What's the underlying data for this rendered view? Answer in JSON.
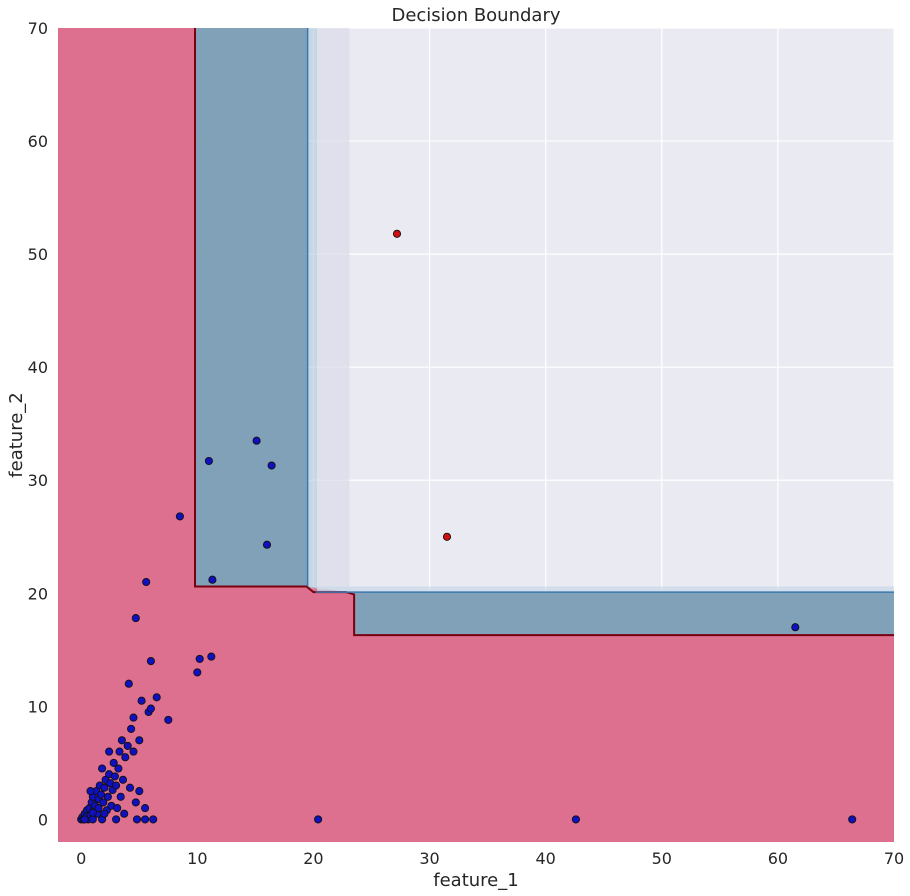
{
  "chart_data": {
    "type": "scatter",
    "title": "Decision Boundary",
    "xlabel": "feature_1",
    "ylabel": "feature_2",
    "xlim": [
      -2,
      70
    ],
    "ylim": [
      -2,
      70
    ],
    "xticks": [
      0,
      10,
      20,
      30,
      40,
      50,
      60,
      70
    ],
    "yticks": [
      0,
      10,
      20,
      30,
      40,
      50,
      60,
      70
    ],
    "grid": true,
    "colors": {
      "background": "#eaeaf2",
      "grid": "#ffffff",
      "class_0_region": "#dd708f",
      "class_1_region": "#7a9db3",
      "boundary_line": "#7a0010",
      "class_0_points": "#1010c0",
      "class_1_points": "#d01010"
    },
    "regions": [
      {
        "class": 0,
        "polygon": [
          [
            -2,
            -2
          ],
          [
            70,
            -2
          ],
          [
            70,
            16.3
          ],
          [
            23.5,
            16.3
          ],
          [
            23.5,
            20
          ],
          [
            19.5,
            20.6
          ],
          [
            9.8,
            20.6
          ],
          [
            9.8,
            70
          ],
          [
            -2,
            70
          ]
        ]
      },
      {
        "class": 1,
        "polygon": [
          [
            9.8,
            70
          ],
          [
            9.8,
            20.6
          ],
          [
            19.5,
            20.6
          ],
          [
            19.5,
            70
          ]
        ]
      },
      {
        "class": 1,
        "polygon": [
          [
            23.5,
            20.1
          ],
          [
            70,
            20.1
          ],
          [
            70,
            16.3
          ],
          [
            23.5,
            16.3
          ]
        ]
      }
    ],
    "boundary": [
      [
        9.8,
        70
      ],
      [
        9.8,
        20.6
      ],
      [
        19.4,
        20.6
      ],
      [
        20.0,
        20.1
      ],
      [
        22.8,
        20.1
      ],
      [
        23.5,
        19.9
      ],
      [
        23.5,
        16.3
      ],
      [
        70,
        16.3
      ]
    ],
    "series": [
      {
        "class": 0,
        "points": [
          [
            0.0,
            0.0
          ],
          [
            0.1,
            0.2
          ],
          [
            0.2,
            0.0
          ],
          [
            0.3,
            0.5
          ],
          [
            0.4,
            0.1
          ],
          [
            0.5,
            0.8
          ],
          [
            0.5,
            0.3
          ],
          [
            0.6,
            0.0
          ],
          [
            0.7,
            1.0
          ],
          [
            0.8,
            0.4
          ],
          [
            0.9,
            1.5
          ],
          [
            1.0,
            0.0
          ],
          [
            1.0,
            2.0
          ],
          [
            1.1,
            0.9
          ],
          [
            1.2,
            1.2
          ],
          [
            1.3,
            2.5
          ],
          [
            1.4,
            0.5
          ],
          [
            1.5,
            1.8
          ],
          [
            1.6,
            3.0
          ],
          [
            1.7,
            2.2
          ],
          [
            1.8,
            0.0
          ],
          [
            1.9,
            1.5
          ],
          [
            2.0,
            2.8
          ],
          [
            2.1,
            3.5
          ],
          [
            2.2,
            0.8
          ],
          [
            2.3,
            2.0
          ],
          [
            2.4,
            4.0
          ],
          [
            2.5,
            3.2
          ],
          [
            2.6,
            1.2
          ],
          [
            2.7,
            2.6
          ],
          [
            2.8,
            5.0
          ],
          [
            2.9,
            3.8
          ],
          [
            3.0,
            0.0
          ],
          [
            3.1,
            1.0
          ],
          [
            3.2,
            4.5
          ],
          [
            3.3,
            6.0
          ],
          [
            3.4,
            2.0
          ],
          [
            3.5,
            7.0
          ],
          [
            3.6,
            3.5
          ],
          [
            3.7,
            0.5
          ],
          [
            3.8,
            5.5
          ],
          [
            4.0,
            6.5
          ],
          [
            4.2,
            2.8
          ],
          [
            4.3,
            8.0
          ],
          [
            4.5,
            9.0
          ],
          [
            4.5,
            6.0
          ],
          [
            4.7,
            1.5
          ],
          [
            4.8,
            0.0
          ],
          [
            5.0,
            2.5
          ],
          [
            5.0,
            7.0
          ],
          [
            5.2,
            10.5
          ],
          [
            5.5,
            0.0
          ],
          [
            5.5,
            1.0
          ],
          [
            5.6,
            21.0
          ],
          [
            5.8,
            9.5
          ],
          [
            6.0,
            14.0
          ],
          [
            6.0,
            9.8
          ],
          [
            6.2,
            0.0
          ],
          [
            6.5,
            10.8
          ],
          [
            4.7,
            17.8
          ],
          [
            4.1,
            12.0
          ],
          [
            2.4,
            6.0
          ],
          [
            1.8,
            4.5
          ],
          [
            0.8,
            2.5
          ],
          [
            1.5,
            1.0
          ],
          [
            3.0,
            3.0
          ],
          [
            2.0,
            0.5
          ],
          [
            1.0,
            0.6
          ],
          [
            0.3,
            0.0
          ],
          [
            7.5,
            8.8
          ],
          [
            8.5,
            26.8
          ],
          [
            10.0,
            13.0
          ],
          [
            10.2,
            14.2
          ],
          [
            11.2,
            14.4
          ],
          [
            11.0,
            31.7
          ],
          [
            11.3,
            21.2
          ],
          [
            15.1,
            33.5
          ],
          [
            16.0,
            24.3
          ],
          [
            16.4,
            31.3
          ],
          [
            20.4,
            0.0
          ],
          [
            42.6,
            0.0
          ],
          [
            61.5,
            17.0
          ],
          [
            66.4,
            0.0
          ]
        ]
      },
      {
        "class": 1,
        "points": [
          [
            27.2,
            51.8
          ],
          [
            31.5,
            25.0
          ]
        ]
      }
    ]
  }
}
